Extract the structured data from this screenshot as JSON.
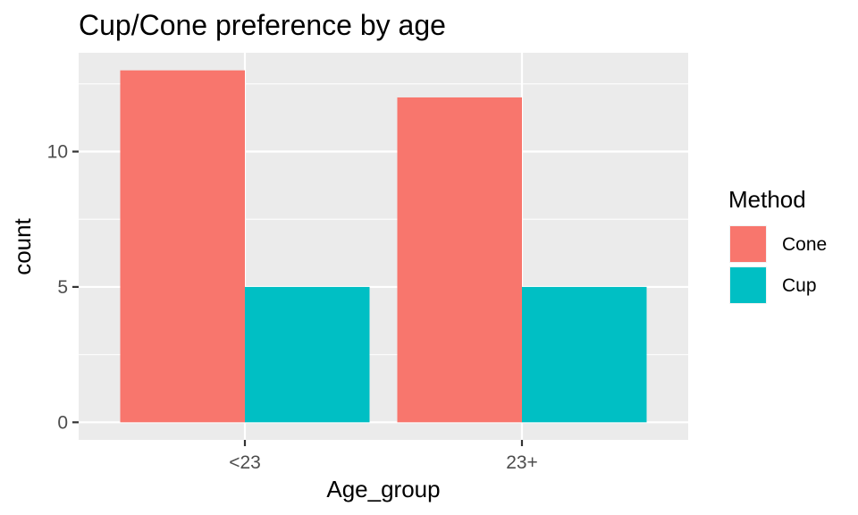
{
  "chart_data": {
    "type": "bar",
    "title": "Cup/Cone preference by age",
    "xlabel": "Age_group",
    "ylabel": "count",
    "categories": [
      "<23",
      "23+"
    ],
    "series": [
      {
        "name": "Cone",
        "values": [
          13,
          12
        ],
        "color": "#F8766D"
      },
      {
        "name": "Cup",
        "values": [
          5,
          5
        ],
        "color": "#00BFC4"
      }
    ],
    "ylim": [
      -0.65,
      13.65
    ],
    "yticks": [
      0,
      5,
      10
    ],
    "ytick_labels": [
      "0",
      "5",
      "10"
    ],
    "grid": true,
    "legend": {
      "title": "Method",
      "position": "right"
    },
    "panel_background": "#EBEBEB",
    "grid_color": "#FFFFFF"
  }
}
